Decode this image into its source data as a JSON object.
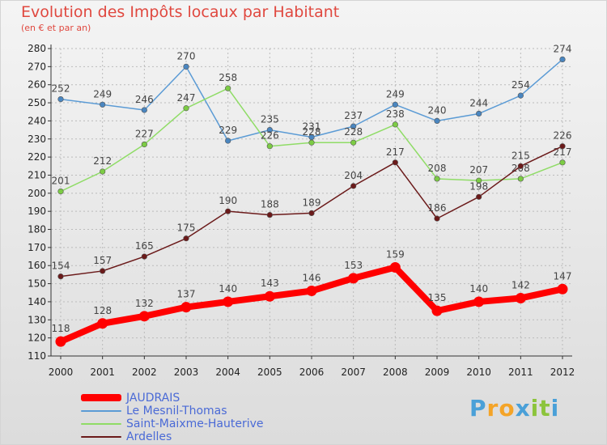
{
  "header": {
    "title": "Evolution des Impôts locaux par Habitant",
    "subtitle": "(en € et par an)"
  },
  "logo": {
    "text": "Proxiti",
    "letters": [
      {
        "ch": "P",
        "color": "#4aa0d8"
      },
      {
        "ch": "r",
        "color": "#f4a428"
      },
      {
        "ch": "o",
        "color": "#f4a428"
      },
      {
        "ch": "x",
        "color": "#4aa0d8"
      },
      {
        "ch": "i",
        "color": "#8cc43c"
      },
      {
        "ch": "t",
        "color": "#8cc43c"
      },
      {
        "ch": "i",
        "color": "#4aa0d8"
      }
    ]
  },
  "colors": {
    "axis": "#333333",
    "grid": "#bbbbbb",
    "tick_text": "#222222",
    "value_text": "#444444"
  },
  "chart_data": {
    "type": "line",
    "title": "Evolution des Impôts locaux par Habitant",
    "subtitle": "(en € et par an)",
    "xlabel": "",
    "ylabel": "",
    "x": [
      "2000",
      "2001",
      "2002",
      "2003",
      "2004",
      "2005",
      "2006",
      "2007",
      "2008",
      "2009",
      "2010",
      "2011",
      "2012"
    ],
    "ylim": [
      110,
      280
    ],
    "yticks": [
      110,
      120,
      130,
      140,
      150,
      160,
      170,
      180,
      190,
      200,
      210,
      220,
      230,
      240,
      250,
      260,
      270,
      280
    ],
    "grid": true,
    "legend_position": "bottom-left",
    "series": [
      {
        "name": "Le Mesnil-Thomas",
        "color": "#5b9bd5",
        "marker": "#4a86c0",
        "values": [
          252,
          249,
          246,
          270,
          229,
          235,
          231,
          237,
          249,
          240,
          244,
          254,
          274
        ]
      },
      {
        "name": "Saint-Maixme-Hauterive",
        "color": "#8fdc66",
        "marker": "#7ccc44",
        "values": [
          201,
          212,
          227,
          247,
          258,
          226,
          228,
          228,
          238,
          208,
          207,
          208,
          217
        ]
      },
      {
        "name": "Ardelles",
        "color": "#6b1a1a",
        "marker": "#6b1a1a",
        "values": [
          154,
          157,
          165,
          175,
          190,
          188,
          189,
          204,
          217,
          186,
          198,
          215,
          226
        ]
      },
      {
        "name": "JAUDRAIS",
        "color": "#ff0000",
        "marker": "#ff0000",
        "values": [
          118,
          128,
          132,
          137,
          140,
          143,
          146,
          153,
          159,
          135,
          140,
          142,
          147
        ]
      }
    ],
    "legend": [
      "JAUDRAIS",
      "Le Mesnil-Thomas",
      "Saint-Maixme-Hauterive",
      "Ardelles"
    ]
  }
}
